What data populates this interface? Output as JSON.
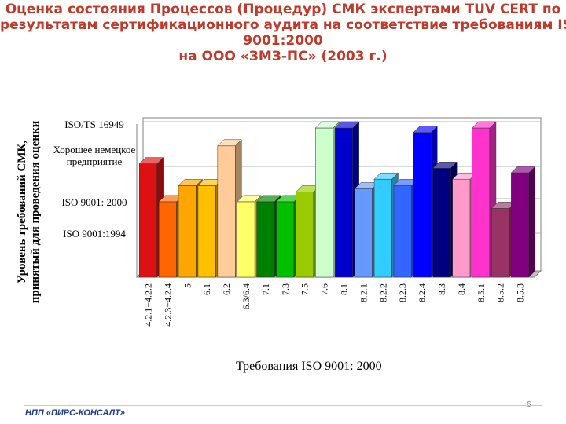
{
  "slide": {
    "title_lines": [
      "Оценка состояния Процессов (Процедур) СМК экспертами TUV CERT по",
      "результатам сертификационного аудита на соответствие требованиям ISO",
      "9001:2000",
      "на ООО «ЗМЗ-ПС» (2003 г.)"
    ],
    "footer": "НПП «ПИРС-КОНСАЛТ»",
    "page_number": "6"
  },
  "chart_data": {
    "type": "bar",
    "xlabel": "Требования ISO 9001: 2000",
    "ylabel_lines": [
      "Уровень требований СМК,",
      "принятый для проведения оценки"
    ],
    "levels": [
      "ISO 9001:1994",
      "ISO 9001: 2000",
      "Хорошее немецкое предприятие",
      "ISO/TS 16949"
    ],
    "level_values": [
      1,
      2,
      3,
      4
    ],
    "ylim": [
      0,
      4
    ],
    "categories": [
      "4.2.1+4.2.2",
      "4.2.3+4.2.4",
      "5",
      "6.1",
      "6.2",
      "6.3/6.4",
      "7.1",
      "7.3",
      "7.5",
      "7.6",
      "8.1",
      "8.2.1",
      "8.2.2",
      "8.2.3",
      "8.2.4",
      "8.3",
      "8.4",
      "8.5.1",
      "8.5.2",
      "8.5.3"
    ],
    "values": [
      3.2,
      2.1,
      2.6,
      2.6,
      3.6,
      2.1,
      2.1,
      2.1,
      2.4,
      4.0,
      4.0,
      2.5,
      2.8,
      2.6,
      3.9,
      3.1,
      2.8,
      4.0,
      1.9,
      3.0
    ],
    "colors": [
      "#dd1111",
      "#ff6600",
      "#ffa500",
      "#ffc000",
      "#ffcc99",
      "#ffff66",
      "#008000",
      "#00c000",
      "#99cc00",
      "#ccffcc",
      "#0000cc",
      "#6699ff",
      "#33ccff",
      "#3366ff",
      "#0000ff",
      "#000080",
      "#ff99cc",
      "#ff33cc",
      "#993366",
      "#800080"
    ]
  }
}
